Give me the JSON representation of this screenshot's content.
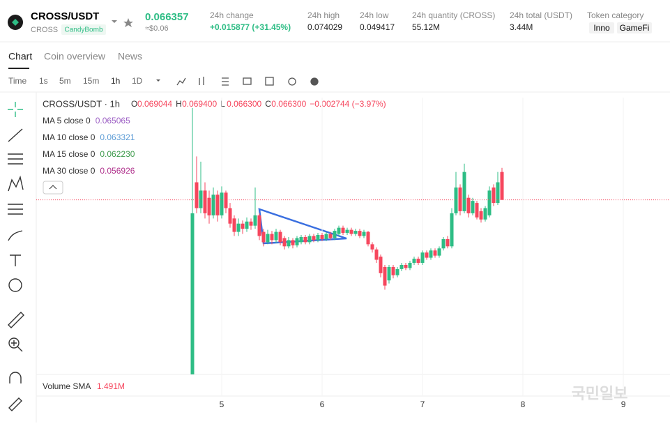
{
  "header": {
    "pair": "CROSS/USDT",
    "base": "CROSS",
    "tag": "CandyBomb",
    "price": "0.066357",
    "usd": "≈$0.06",
    "stats": [
      {
        "label": "24h change",
        "value": "+0.015877 (+31.45%)"
      },
      {
        "label": "24h high",
        "value": "0.074029"
      },
      {
        "label": "24h low",
        "value": "0.049417"
      },
      {
        "label": "24h quantity (CROSS)",
        "value": "55.12M"
      },
      {
        "label": "24h total (USDT)",
        "value": "3.44M"
      }
    ],
    "category_label": "Token category",
    "categories": [
      "Inno",
      "GameFi"
    ]
  },
  "tabs": [
    "Chart",
    "Coin overview",
    "News"
  ],
  "timeframes": [
    "Time",
    "1s",
    "5m",
    "15m",
    "1h",
    "1D"
  ],
  "legend": {
    "title": "CROSS/USDT · 1h",
    "ohlc": [
      {
        "k": "O",
        "v": "0.069044"
      },
      {
        "k": "H",
        "v": "0.069400"
      },
      {
        "k": "L",
        "v": "0.066300"
      },
      {
        "k": "C",
        "v": "0.066300"
      }
    ],
    "change": "−0.002744 (−3.97%)",
    "ma": [
      {
        "label": "MA 5 close 0",
        "value": "0.065065",
        "color": "#9c5fc4"
      },
      {
        "label": "MA 10 close 0",
        "value": "0.063321",
        "color": "#5b9bd5"
      },
      {
        "label": "MA 15 close 0",
        "value": "0.062230",
        "color": "#3d9a4b"
      },
      {
        "label": "MA 30 close 0",
        "value": "0.056926",
        "color": "#b0338d"
      }
    ],
    "volume_label": "Volume SMA",
    "volume_value": "1.491M"
  },
  "chart_data": {
    "type": "candlestick",
    "up_color": "#2ebd85",
    "down_color": "#f6465d",
    "ylim": [
      0.0494,
      0.0762
    ],
    "xlim": [
      3.153,
      9.458
    ],
    "xticks": [
      5,
      6,
      7,
      8,
      9
    ],
    "open": [
      0.0494,
      0.068,
      0.0655,
      0.0672,
      0.0665,
      0.0648,
      0.0668,
      0.0648,
      0.067,
      0.0655,
      0.0645,
      0.0632,
      0.064,
      0.0635,
      0.0642,
      0.0638,
      0.0648,
      0.0632,
      0.0622,
      0.063,
      0.0624,
      0.0632,
      0.0626,
      0.0618,
      0.0624,
      0.0619,
      0.0622,
      0.0627,
      0.0622,
      0.0628,
      0.0624,
      0.0629,
      0.0625,
      0.063,
      0.0626,
      0.063,
      0.0636,
      0.0631,
      0.0634,
      0.063,
      0.0633,
      0.0628,
      0.0632,
      0.062,
      0.0615,
      0.0608,
      0.0598,
      0.0585,
      0.0598,
      0.059,
      0.0596,
      0.06,
      0.0597,
      0.0602,
      0.0606,
      0.0602,
      0.0612,
      0.0607,
      0.0614,
      0.0609,
      0.0616,
      0.0625,
      0.0618,
      0.065,
      0.0675,
      0.0652,
      0.0665,
      0.065,
      0.066,
      0.0652,
      0.0644,
      0.0648,
      0.0675,
      0.066,
      0.069
    ],
    "high": [
      0.0752,
      0.0705,
      0.07,
      0.068,
      0.0672,
      0.0675,
      0.0672,
      0.0676,
      0.0672,
      0.066,
      0.0648,
      0.0645,
      0.0643,
      0.0646,
      0.0645,
      0.0675,
      0.065,
      0.0635,
      0.0634,
      0.0633,
      0.0635,
      0.0634,
      0.0628,
      0.0627,
      0.0626,
      0.0628,
      0.0629,
      0.0629,
      0.063,
      0.063,
      0.0631,
      0.0631,
      0.0632,
      0.0632,
      0.0635,
      0.0638,
      0.0638,
      0.0636,
      0.0636,
      0.0635,
      0.0635,
      0.0634,
      0.0633,
      0.0622,
      0.0617,
      0.061,
      0.06,
      0.06,
      0.06,
      0.0598,
      0.0602,
      0.0602,
      0.0604,
      0.0608,
      0.0608,
      0.0614,
      0.0614,
      0.0616,
      0.0616,
      0.0618,
      0.0627,
      0.0628,
      0.0655,
      0.069,
      0.0678,
      0.0698,
      0.0668,
      0.0665,
      0.0662,
      0.0655,
      0.0657,
      0.0676,
      0.0678,
      0.069,
      0.0694
    ],
    "low": [
      0.0494,
      0.065,
      0.065,
      0.0645,
      0.064,
      0.0645,
      0.0642,
      0.0645,
      0.065,
      0.0636,
      0.0628,
      0.0628,
      0.063,
      0.0632,
      0.0634,
      0.0635,
      0.0624,
      0.0618,
      0.062,
      0.062,
      0.0621,
      0.0619,
      0.0615,
      0.0616,
      0.0616,
      0.0617,
      0.062,
      0.062,
      0.062,
      0.0622,
      0.0622,
      0.0623,
      0.0623,
      0.0624,
      0.0624,
      0.0628,
      0.0629,
      0.0629,
      0.0628,
      0.0628,
      0.0626,
      0.0626,
      0.0618,
      0.0612,
      0.0602,
      0.0588,
      0.0576,
      0.0582,
      0.0587,
      0.0588,
      0.0594,
      0.0595,
      0.0595,
      0.06,
      0.06,
      0.06,
      0.0605,
      0.0605,
      0.0607,
      0.0607,
      0.0614,
      0.0616,
      0.0616,
      0.0648,
      0.0648,
      0.065,
      0.0646,
      0.0648,
      0.0644,
      0.0641,
      0.0642,
      0.0646,
      0.0657,
      0.0658,
      0.0663
    ],
    "close": [
      0.065,
      0.0655,
      0.0672,
      0.065,
      0.0648,
      0.0668,
      0.0648,
      0.067,
      0.0655,
      0.064,
      0.0632,
      0.064,
      0.0635,
      0.0642,
      0.0638,
      0.0648,
      0.0628,
      0.0622,
      0.063,
      0.0624,
      0.0632,
      0.0622,
      0.0618,
      0.0624,
      0.0619,
      0.0626,
      0.0627,
      0.0622,
      0.0628,
      0.0624,
      0.0629,
      0.0625,
      0.063,
      0.0626,
      0.0633,
      0.0636,
      0.0631,
      0.0634,
      0.063,
      0.0633,
      0.0628,
      0.0632,
      0.062,
      0.0615,
      0.0605,
      0.0592,
      0.058,
      0.0598,
      0.059,
      0.0596,
      0.06,
      0.0597,
      0.0602,
      0.0606,
      0.0602,
      0.0612,
      0.0607,
      0.0614,
      0.0609,
      0.0616,
      0.0625,
      0.0618,
      0.065,
      0.0675,
      0.0652,
      0.069,
      0.065,
      0.0662,
      0.0646,
      0.0644,
      0.0655,
      0.0672,
      0.066,
      0.068,
      0.0663
    ]
  }
}
